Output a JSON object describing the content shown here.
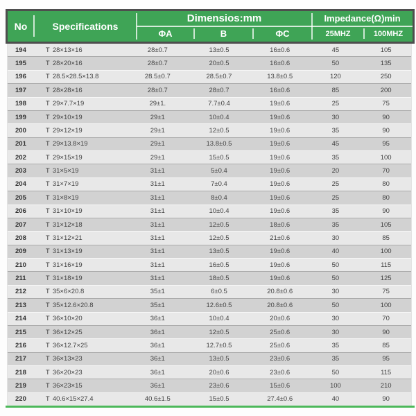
{
  "header": {
    "no": "No",
    "specifications": "Specifications",
    "dimensions_group": "Dimensios:mm",
    "impedance_group": "Impedance(Ω)min",
    "sub": {
      "phi_a": "ΦA",
      "b": "B",
      "phi_c": "ΦC",
      "mhz25": "25MHZ",
      "mhz100": "100MHZ"
    }
  },
  "colors": {
    "header_green": "#3FA456",
    "header_border": "#4E4E4E",
    "header_text": "#FFFFFF",
    "row_light": "#E8E8E8",
    "row_dark": "#D2D2D2",
    "row_divider_dark": "#ABABAB",
    "bottom_line_green": "#4CB85A",
    "text_dark": "#424242"
  },
  "table": {
    "rows": [
      {
        "no": "194",
        "spec": "T 28×13×16",
        "phi_a": "28±0.7",
        "b": "13±0.5",
        "phi_c": "16±0.6",
        "mhz25": "45",
        "mhz100": "105"
      },
      {
        "no": "195",
        "spec": "T 28×20×16",
        "phi_a": "28±0.7",
        "b": "20±0.5",
        "phi_c": "16±0.6",
        "mhz25": "50",
        "mhz100": "135"
      },
      {
        "no": "196",
        "spec": "T 28.5×28.5×13.8",
        "phi_a": "28.5±0.7",
        "b": "28.5±0.7",
        "phi_c": "13.8±0.5",
        "mhz25": "120",
        "mhz100": "250"
      },
      {
        "no": "197",
        "spec": "T 28×28×16",
        "phi_a": "28±0.7",
        "b": "28±0.7",
        "phi_c": "16±0.6",
        "mhz25": "85",
        "mhz100": "200"
      },
      {
        "no": "198",
        "spec": "T 29×7.7×19",
        "phi_a": "29±1.",
        "b": "7.7±0.4",
        "phi_c": "19±0.6",
        "mhz25": "25",
        "mhz100": "75"
      },
      {
        "no": "199",
        "spec": "T 29×10×19",
        "phi_a": "29±1",
        "b": "10±0.4",
        "phi_c": "19±0.6",
        "mhz25": "30",
        "mhz100": "90"
      },
      {
        "no": "200",
        "spec": "T 29×12×19",
        "phi_a": "29±1",
        "b": "12±0.5",
        "phi_c": "19±0.6",
        "mhz25": "35",
        "mhz100": "90"
      },
      {
        "no": "201",
        "spec": "T 29×13.8×19",
        "phi_a": "29±1",
        "b": "13.8±0.5",
        "phi_c": "19±0.6",
        "mhz25": "45",
        "mhz100": "95"
      },
      {
        "no": "202",
        "spec": "T 29×15×19",
        "phi_a": "29±1",
        "b": "15±0.5",
        "phi_c": "19±0.6",
        "mhz25": "35",
        "mhz100": "100"
      },
      {
        "no": "203",
        "spec": "T 31×5×19",
        "phi_a": "31±1",
        "b": "5±0.4",
        "phi_c": "19±0.6",
        "mhz25": "20",
        "mhz100": "70"
      },
      {
        "no": "204",
        "spec": "T 31×7×19",
        "phi_a": "31±1",
        "b": "7±0.4",
        "phi_c": "19±0.6",
        "mhz25": "25",
        "mhz100": "80"
      },
      {
        "no": "205",
        "spec": "T 31×8×19",
        "phi_a": "31±1",
        "b": "8±0.4",
        "phi_c": "19±0.6",
        "mhz25": "25",
        "mhz100": "80"
      },
      {
        "no": "206",
        "spec": "T 31×10×19",
        "phi_a": "31±1",
        "b": "10±0.4",
        "phi_c": "19±0.6",
        "mhz25": "35",
        "mhz100": "90"
      },
      {
        "no": "207",
        "spec": "T 31×12×18",
        "phi_a": "31±1",
        "b": "12±0.5",
        "phi_c": "18±0.6",
        "mhz25": "35",
        "mhz100": "105"
      },
      {
        "no": "208",
        "spec": "T 31×12×21",
        "phi_a": "31±1",
        "b": "12±0.5",
        "phi_c": "21±0.6",
        "mhz25": "30",
        "mhz100": "85"
      },
      {
        "no": "209",
        "spec": "T 31×13×19",
        "phi_a": "31±1",
        "b": "13±0.5",
        "phi_c": "19±0.6",
        "mhz25": "40",
        "mhz100": "100"
      },
      {
        "no": "210",
        "spec": "T 31×16×19",
        "phi_a": "31±1",
        "b": "16±0.5",
        "phi_c": "19±0.6",
        "mhz25": "50",
        "mhz100": "115"
      },
      {
        "no": "211",
        "spec": "T 31×18×19",
        "phi_a": "31±1",
        "b": "18±0.5",
        "phi_c": "19±0.6",
        "mhz25": "50",
        "mhz100": "125"
      },
      {
        "no": "212",
        "spec": "T 35×6×20.8",
        "phi_a": "35±1",
        "b": "6±0.5",
        "phi_c": "20.8±0.6",
        "mhz25": "30",
        "mhz100": "75"
      },
      {
        "no": "213",
        "spec": "T 35×12.6×20.8",
        "phi_a": "35±1",
        "b": "12.6±0.5",
        "phi_c": "20.8±0.6",
        "mhz25": "50",
        "mhz100": "100"
      },
      {
        "no": "214",
        "spec": "T 36×10×20",
        "phi_a": "36±1",
        "b": "10±0.4",
        "phi_c": "20±0.6",
        "mhz25": "30",
        "mhz100": "70"
      },
      {
        "no": "215",
        "spec": "T 36×12×25",
        "phi_a": "36±1",
        "b": "12±0.5",
        "phi_c": "25±0.6",
        "mhz25": "30",
        "mhz100": "90"
      },
      {
        "no": "216",
        "spec": "T 36×12.7×25",
        "phi_a": "36±1",
        "b": "12.7±0.5",
        "phi_c": "25±0.6",
        "mhz25": "35",
        "mhz100": "85"
      },
      {
        "no": "217",
        "spec": "T 36×13×23",
        "phi_a": "36±1",
        "b": "13±0.5",
        "phi_c": "23±0.6",
        "mhz25": "35",
        "mhz100": "95"
      },
      {
        "no": "218",
        "spec": "T 36×20×23",
        "phi_a": "36±1",
        "b": "20±0.6",
        "phi_c": "23±0.6",
        "mhz25": "50",
        "mhz100": "115"
      },
      {
        "no": "219",
        "spec": "T 36×23×15",
        "phi_a": "36±1",
        "b": "23±0.6",
        "phi_c": "15±0.6",
        "mhz25": "100",
        "mhz100": "210"
      },
      {
        "no": "220",
        "spec": "T 40.6×15×27.4",
        "phi_a": "40.6±1.5",
        "b": "15±0.5",
        "phi_c": "27.4±0.6",
        "mhz25": "40",
        "mhz100": "90"
      }
    ]
  }
}
